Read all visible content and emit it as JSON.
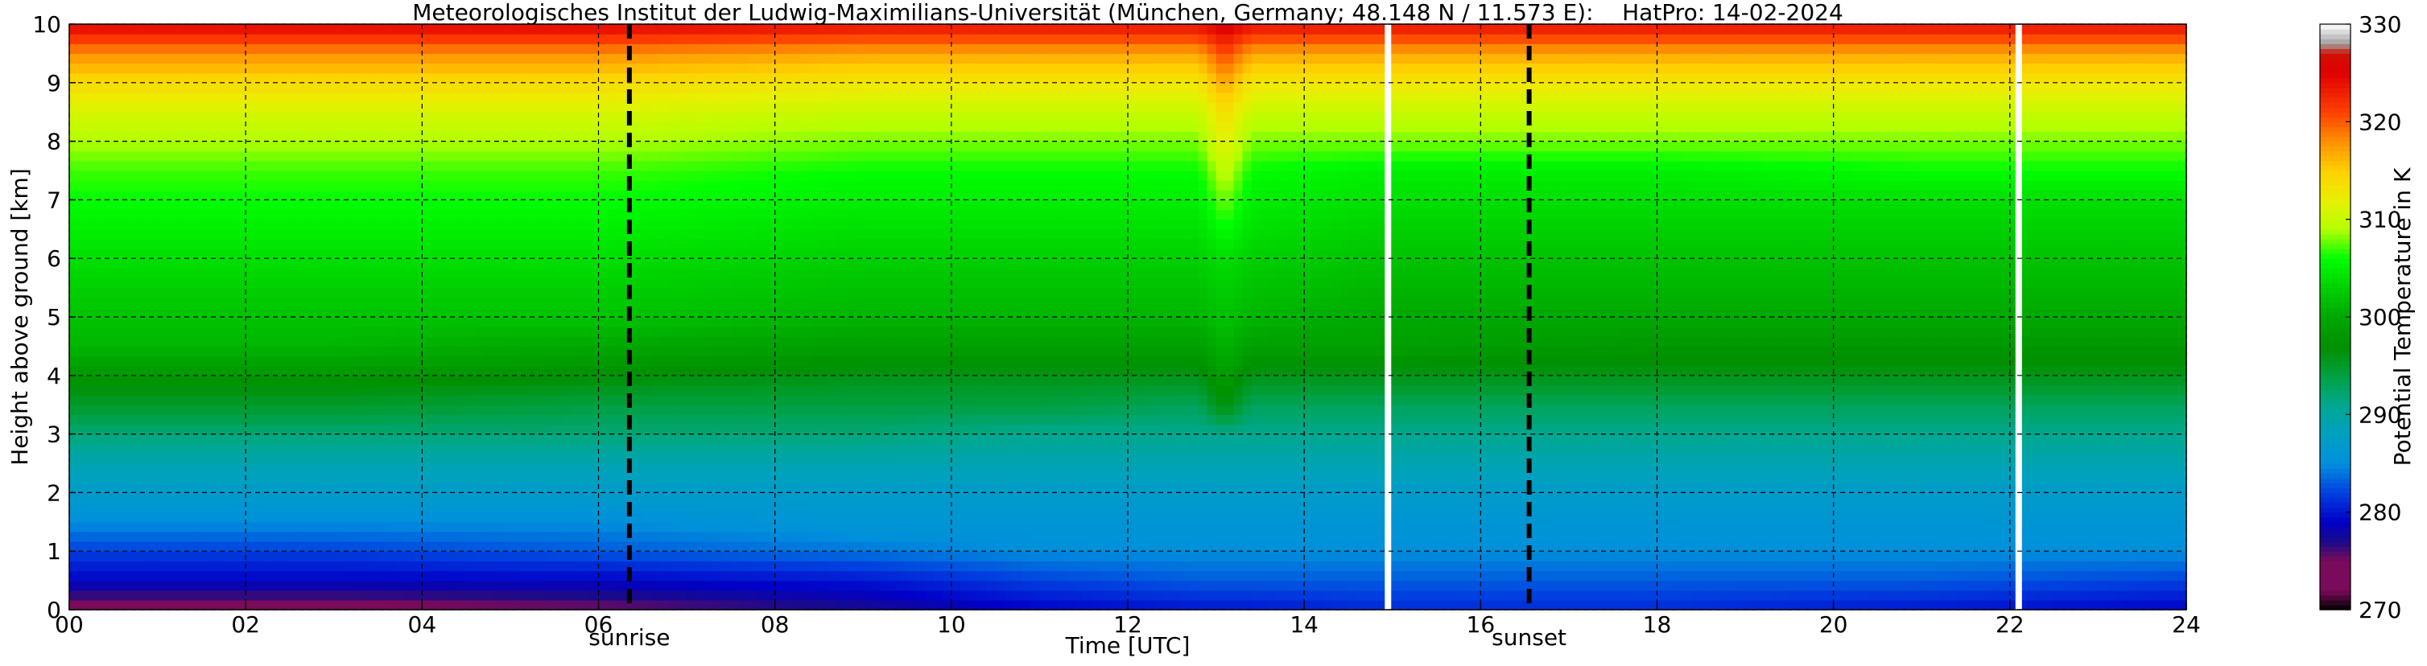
{
  "chart_data": {
    "type": "heatmap",
    "title": "Meteorologisches Institut der Ludwig-Maximilians-Universität (München, Germany; 48.148 N / 11.573 E):    HatPro: 14-02-2024",
    "xlabel": "Time [UTC]",
    "ylabel": "Height above ground [km]",
    "xlim": [
      0,
      24
    ],
    "ylim": [
      0,
      10
    ],
    "x_ticks": [
      "00",
      "02",
      "04",
      "06",
      "08",
      "10",
      "12",
      "14",
      "16",
      "18",
      "20",
      "22",
      "24"
    ],
    "y_ticks": [
      "0",
      "1",
      "2",
      "3",
      "4",
      "5",
      "6",
      "7",
      "8",
      "9",
      "10"
    ],
    "grid": true,
    "colorbar": {
      "label": "Potential Temperature in K",
      "range": [
        270,
        330
      ],
      "ticks": [
        "270",
        "280",
        "290",
        "300",
        "310",
        "320",
        "330"
      ]
    },
    "events": [
      {
        "name": "sunrise",
        "time": 6.35
      },
      {
        "name": "sunset",
        "time": 16.55
      }
    ],
    "data_gaps": [
      14.95,
      22.1
    ],
    "profile_heights_km": [
      0,
      0.5,
      1,
      1.5,
      2,
      2.5,
      3,
      3.5,
      4,
      4.5,
      5,
      5.5,
      6,
      6.5,
      7,
      7.5,
      8,
      8.5,
      9,
      9.5,
      10
    ],
    "profiles": [
      {
        "time": 0,
        "theta": [
          274,
          279,
          282,
          285,
          287,
          289,
          292,
          295,
          298,
          301,
          302,
          303,
          304,
          305,
          306,
          307,
          309,
          311,
          314,
          318,
          325
        ]
      },
      {
        "time": 3,
        "theta": [
          274,
          279,
          282,
          285,
          287,
          289,
          292,
          295,
          298,
          301,
          302,
          303,
          304,
          305,
          306,
          307,
          309,
          311,
          314,
          318,
          325
        ]
      },
      {
        "time": 6,
        "theta": [
          275,
          279,
          283,
          285,
          287,
          289,
          292,
          294,
          297,
          300,
          302,
          303,
          304,
          305,
          306,
          307,
          309,
          311,
          314,
          318,
          325
        ]
      },
      {
        "time": 9,
        "theta": [
          277,
          280,
          284,
          286,
          287,
          289,
          292,
          294,
          296,
          299,
          301,
          302,
          303,
          304,
          305,
          306,
          308,
          310,
          313,
          317,
          324
        ]
      },
      {
        "time": 11,
        "theta": [
          279,
          282,
          285,
          286,
          287,
          289,
          291,
          294,
          296,
          299,
          301,
          302,
          303,
          304,
          305,
          306,
          308,
          310,
          313,
          317,
          324
        ]
      },
      {
        "time": 12.8,
        "theta": [
          280,
          283,
          285,
          286,
          287,
          289,
          291,
          293,
          296,
          299,
          301,
          302,
          303,
          304,
          305,
          306,
          308,
          310,
          313,
          317,
          324
        ]
      },
      {
        "time": 13.1,
        "theta": [
          280,
          283,
          285,
          286,
          287,
          289,
          291,
          297,
          299,
          301,
          302,
          303,
          304,
          306,
          308,
          310,
          312,
          314,
          317,
          321,
          326
        ]
      },
      {
        "time": 13.4,
        "theta": [
          280,
          283,
          285,
          286,
          287,
          289,
          291,
          293,
          296,
          299,
          301,
          302,
          303,
          304,
          305,
          306,
          308,
          310,
          313,
          317,
          324
        ]
      },
      {
        "time": 15,
        "theta": [
          281,
          283,
          285,
          286,
          287,
          289,
          291,
          293,
          296,
          299,
          300,
          301,
          302,
          303,
          304,
          305,
          308,
          310,
          313,
          317,
          324
        ]
      },
      {
        "time": 18,
        "theta": [
          281,
          283,
          285,
          286,
          287,
          289,
          291,
          293,
          296,
          298,
          300,
          301,
          302,
          303,
          304,
          305,
          308,
          310,
          313,
          317,
          324
        ]
      },
      {
        "time": 21,
        "theta": [
          280,
          283,
          285,
          286,
          287,
          289,
          291,
          293,
          296,
          298,
          300,
          301,
          302,
          303,
          304,
          306,
          308,
          310,
          313,
          317,
          324
        ]
      },
      {
        "time": 24,
        "theta": [
          279,
          282,
          285,
          286,
          287,
          289,
          291,
          293,
          296,
          298,
          300,
          301,
          302,
          303,
          304,
          306,
          308,
          310,
          313,
          317,
          324
        ]
      }
    ]
  }
}
